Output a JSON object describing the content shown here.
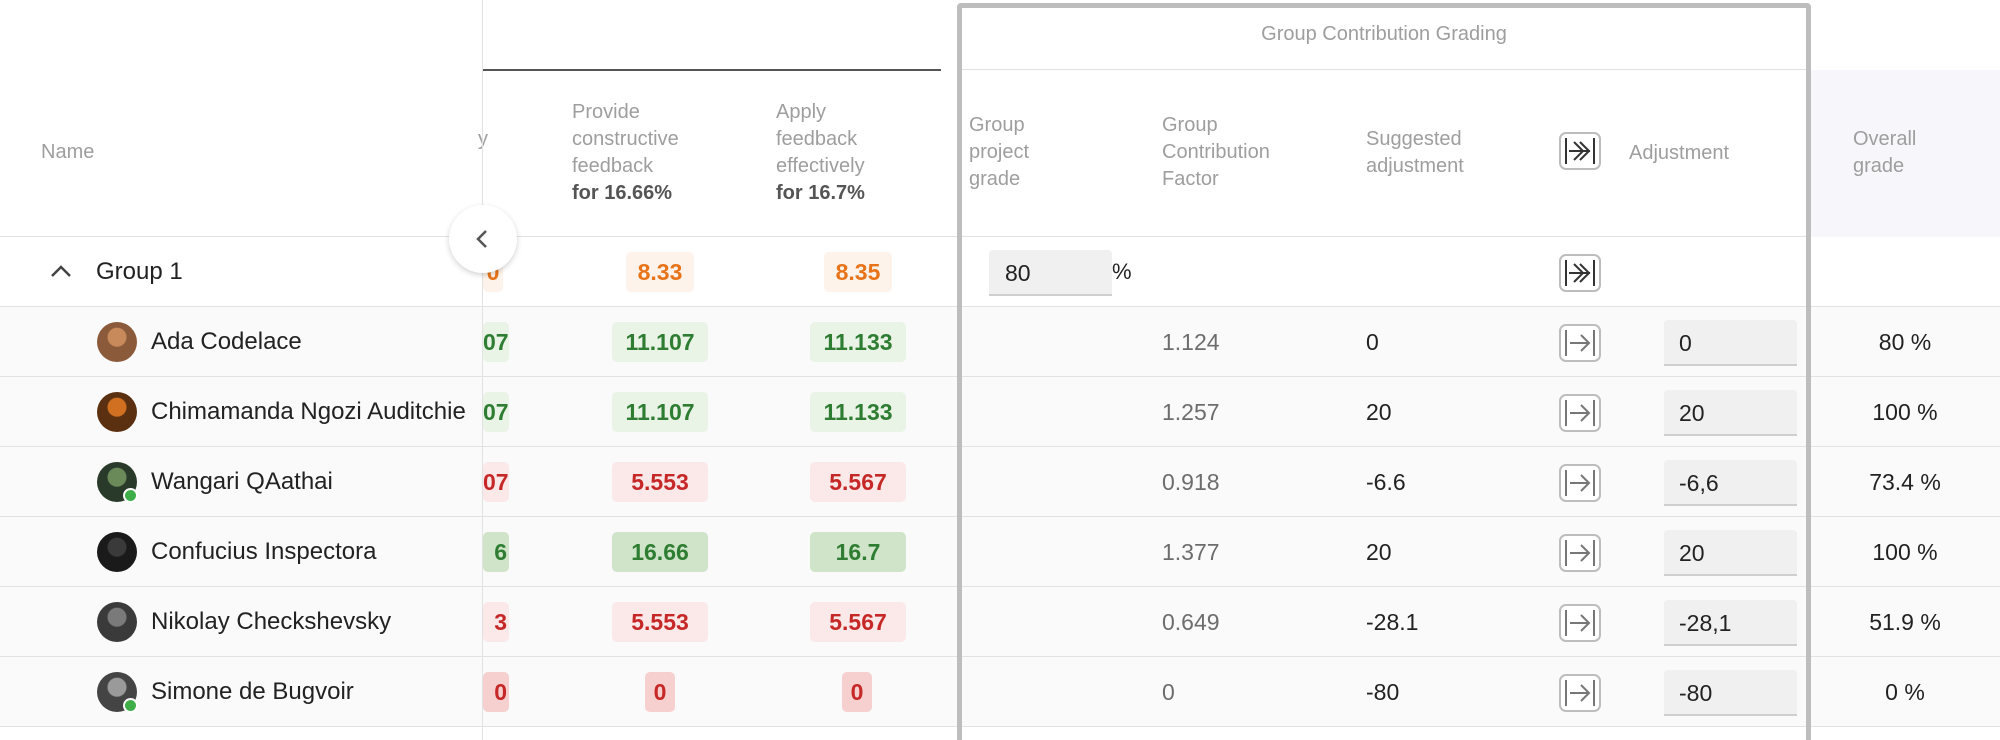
{
  "header": {
    "name_label": "Name",
    "truncated_col": "y",
    "col_feedback": {
      "title": "Provide constructive feedback",
      "weight": "for 16.66%"
    },
    "col_apply": {
      "title": "Apply feedback effectively",
      "weight": "for 16.7%"
    },
    "group_section": "Group Contribution Grading",
    "col_project": "Group project grade",
    "col_factor": "Group Contribution Factor",
    "col_suggested": "Suggested adjustment",
    "col_adjustment": "Adjustment",
    "col_overall": "Overall grade"
  },
  "group": {
    "name": "Group 1",
    "trunc": "0",
    "feedback": "8.33",
    "apply": "8.35",
    "project_grade": "80",
    "percent_sign": "%"
  },
  "students": [
    {
      "name": "Ada Codelace",
      "trunc": "07",
      "feedback": "11.107",
      "apply": "11.133",
      "factor": "1.124",
      "suggested": "0",
      "adjustment": "0",
      "overall": "80 %"
    },
    {
      "name": "Chimamanda Ngozi Auditchie",
      "trunc": "07",
      "feedback": "11.107",
      "apply": "11.133",
      "factor": "1.257",
      "suggested": "20",
      "adjustment": "20",
      "overall": "100 %"
    },
    {
      "name": "Wangari QAathai",
      "trunc": "07",
      "feedback": "5.553",
      "apply": "5.567",
      "factor": "0.918",
      "suggested": "-6.6",
      "adjustment": "-6,6",
      "overall": "73.4 %"
    },
    {
      "name": "Confucius Inspectora",
      "trunc": "6",
      "feedback": "16.66",
      "apply": "16.7",
      "factor": "1.377",
      "suggested": "20",
      "adjustment": "20",
      "overall": "100 %"
    },
    {
      "name": "Nikolay Checkshevsky",
      "trunc": "3",
      "feedback": "5.553",
      "apply": "5.567",
      "factor": "0.649",
      "suggested": "-28.1",
      "adjustment": "-28,1",
      "overall": "51.9 %"
    },
    {
      "name": "Simone de Bugvoir",
      "trunc": "0",
      "feedback": "0",
      "apply": "0",
      "factor": "0",
      "suggested": "-80",
      "adjustment": "-80",
      "overall": "0 %"
    }
  ],
  "icons": {
    "collapse": "chevron-up-icon",
    "scroll_left": "chevron-left-icon",
    "apply_all": "double-arrow-right-icon",
    "apply_row": "arrow-right-icon"
  },
  "colors": {
    "accent_orange": "#e8741a",
    "good_green": "#2e7d32",
    "bad_red": "#c62828",
    "section_border": "#bdbdbd"
  }
}
